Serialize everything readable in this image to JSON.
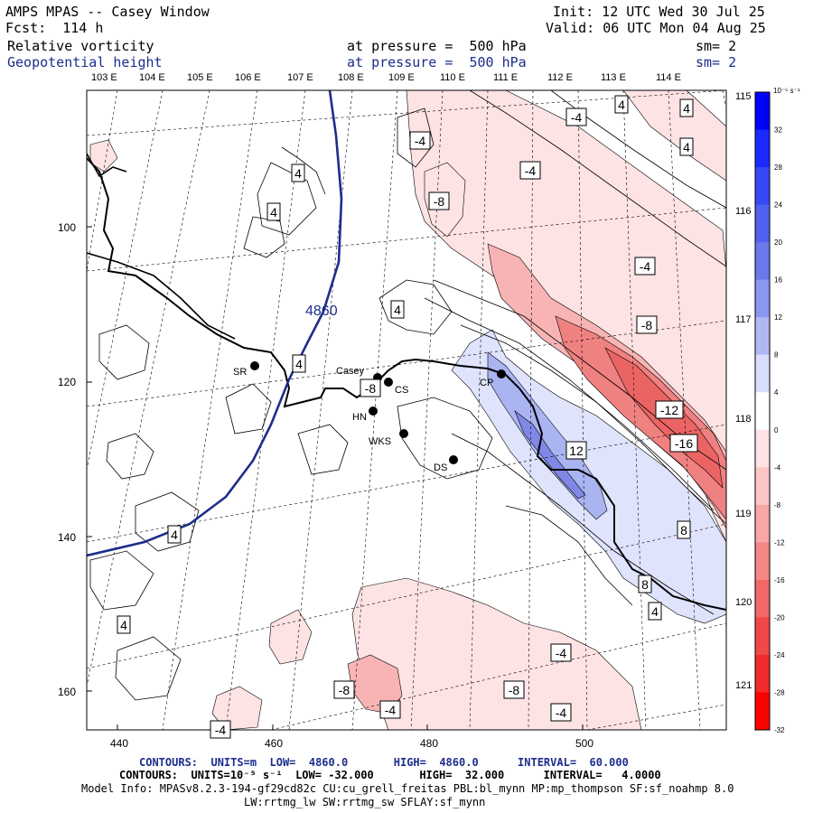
{
  "header": {
    "left1": "AMPS MPAS -- Casey Window",
    "left2": "Fcst:  114 h",
    "right1": "Init: 12 UTC Wed 30 Jul 25",
    "right2": "Valid: 06 UTC Mon 04 Aug 25",
    "field1": "Relative vorticity",
    "field1_level": "at pressure =  500 hPa",
    "field1_sm": "sm= 2",
    "field2": "Geopotential height",
    "field2_level": "at pressure =  500 hPa",
    "field2_sm": "sm= 2"
  },
  "longitudes_top": [
    "103 E",
    "104 E",
    "105 E",
    "106 E",
    "107 E",
    "108 E",
    "109 E",
    "110 E",
    "111 E",
    "112 E",
    "113 E",
    "114 E"
  ],
  "longitudes_right": [
    "115 E",
    "116 E",
    "117 E",
    "118 E",
    "119 E",
    "120 E",
    "121 E"
  ],
  "x_ticks": [
    "440",
    "460",
    "480",
    "500"
  ],
  "y_ticks": [
    "100",
    "120",
    "140",
    "160"
  ],
  "colorbar": {
    "unit": "10⁻⁵ s⁻¹",
    "labels": [
      "32",
      "28",
      "24",
      "20",
      "16",
      "12",
      "8",
      "4",
      "0",
      "-4",
      "-8",
      "-12",
      "-16",
      "-20",
      "-24",
      "-28",
      "-32"
    ]
  },
  "stations": [
    {
      "name": "Casey"
    },
    {
      "name": "CS"
    },
    {
      "name": "SR"
    },
    {
      "name": "HN"
    },
    {
      "name": "WKS"
    },
    {
      "name": "DS"
    },
    {
      "name": "CP"
    }
  ],
  "contour_labels": {
    "height": "4860",
    "vort": [
      "4",
      "4",
      "4",
      "4",
      "4",
      "4",
      "4",
      "4",
      "4",
      "4",
      "-4",
      "-4",
      "-4",
      "-4",
      "-4",
      "-4",
      "-4",
      "-4",
      "-8",
      "-8",
      "-8",
      "-8",
      "-8",
      "-12",
      "-16",
      "12",
      "8",
      "8"
    ]
  },
  "footer": {
    "line1": "CONTOURS:  UNITS=m  LOW=  4860.0       HIGH=  4860.0      INTERVAL=  60.000",
    "line2": "CONTOURS:  UNITS=10⁻⁵ s⁻¹  LOW= -32.000       HIGH=  32.000      INTERVAL=   4.0000",
    "line3": "Model Info: MPASv8.2.3-194-gf29cd82c CU:cu_grell_freitas PBL:bl_mynn MP:mp_thompson SF:sf_noahmp 8.0",
    "line4": "LW:rrtmg_lw SW:rrtmg_sw SFLAY:sf_mynn"
  },
  "colors": {
    "height_contour": "#1c2d8c",
    "pos_light": "#dfe3fb",
    "pos_mid": "#aab4f1",
    "pos_dark": "#8088e6",
    "neg_light": "#fde3e3",
    "neg_mid": "#f8b4b4",
    "neg_dark": "#f08181",
    "neg_darker": "#eb6464"
  }
}
